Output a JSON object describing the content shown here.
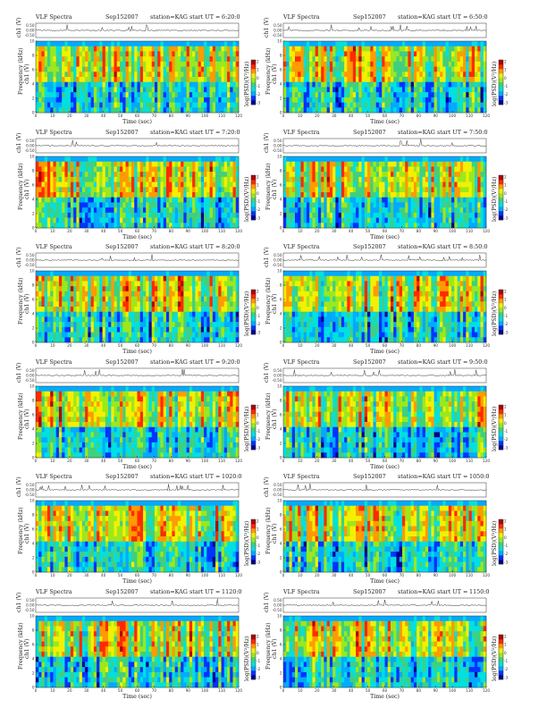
{
  "common": {
    "title_left": "VLF Spectra",
    "date": "Sep152007",
    "station": "station=KAG",
    "start_label": "start  UT =",
    "ylabel_ch": "ch1 (V)",
    "ylabel_freq": "Frequency  (kHz)",
    "xlabel": "Time  (sec)",
    "colorbar_label": "log(PSD)(V²/Hz)",
    "colormap": [
      "#00008b",
      "#0033ff",
      "#00aaff",
      "#00e0e0",
      "#3fd07f",
      "#9be81c",
      "#f3f000",
      "#ff9a00",
      "#ff2a00",
      "#b00000"
    ]
  },
  "chart_data": [
    {
      "type": "heatmap",
      "start_ut": "6:20:0",
      "ch1_ticks": [
        "0.50",
        "0.00",
        "-0.50"
      ],
      "ch1_ylim": [
        -0.5,
        0.5
      ],
      "freq_ylim": [
        0,
        10
      ],
      "freq_ticks": [
        "0",
        "2",
        "4",
        "6",
        "8",
        "10"
      ],
      "xlim": [
        0,
        120
      ],
      "x_ticks": [
        "0",
        "10",
        "20",
        "30",
        "40",
        "50",
        "60",
        "70",
        "80",
        "90",
        "100",
        "110",
        "120"
      ],
      "colorbar_ticks": [
        "2",
        "1",
        "0",
        "-1",
        "-2",
        "-3"
      ]
    },
    {
      "type": "heatmap",
      "start_ut": "6:50:0",
      "ch1_ticks": [
        "0.50",
        "0.00",
        "-0.50"
      ],
      "ch1_ylim": [
        -0.5,
        0.5
      ],
      "freq_ylim": [
        0,
        10
      ],
      "freq_ticks": [
        "0",
        "2",
        "4",
        "6",
        "8",
        "10"
      ],
      "xlim": [
        0,
        120
      ],
      "x_ticks": [
        "0",
        "10",
        "20",
        "30",
        "40",
        "50",
        "60",
        "70",
        "80",
        "90",
        "100",
        "110",
        "120"
      ],
      "colorbar_ticks": [
        "2",
        "1",
        "0",
        "-1",
        "-2",
        "-3"
      ]
    },
    {
      "type": "heatmap",
      "start_ut": "7:20:0",
      "ch1_ticks": [
        "0.50",
        "0.00",
        "-0.50"
      ],
      "ch1_ylim": [
        -0.5,
        0.5
      ],
      "freq_ylim": [
        0,
        10
      ],
      "freq_ticks": [
        "0",
        "2",
        "4",
        "6",
        "8",
        "10"
      ],
      "xlim": [
        0,
        120
      ],
      "x_ticks": [
        "0",
        "10",
        "20",
        "30",
        "40",
        "50",
        "60",
        "70",
        "80",
        "90",
        "100",
        "110",
        "120"
      ],
      "colorbar_ticks": [
        "2",
        "1",
        "0",
        "-1",
        "-2",
        "-3"
      ]
    },
    {
      "type": "heatmap",
      "start_ut": "7:50:0",
      "ch1_ticks": [
        "0.50",
        "0.00",
        "-0.50"
      ],
      "ch1_ylim": [
        -0.5,
        0.5
      ],
      "freq_ylim": [
        0,
        10
      ],
      "freq_ticks": [
        "0",
        "2",
        "4",
        "6",
        "8",
        "10"
      ],
      "xlim": [
        0,
        120
      ],
      "x_ticks": [
        "0",
        "10",
        "20",
        "30",
        "40",
        "50",
        "60",
        "70",
        "80",
        "90",
        "100",
        "110",
        "120"
      ],
      "colorbar_ticks": [
        "2",
        "1",
        "0",
        "-1",
        "-2",
        "-3"
      ]
    },
    {
      "type": "heatmap",
      "start_ut": "8:20:0",
      "ch1_ticks": [
        "0.50",
        "0.00",
        "-0.50"
      ],
      "ch1_ylim": [
        -0.5,
        0.5
      ],
      "freq_ylim": [
        0,
        10
      ],
      "freq_ticks": [
        "0",
        "2",
        "4",
        "6",
        "8",
        "10"
      ],
      "xlim": [
        0,
        120
      ],
      "x_ticks": [
        "0",
        "10",
        "20",
        "30",
        "40",
        "50",
        "60",
        "70",
        "80",
        "90",
        "100",
        "110",
        "120"
      ],
      "colorbar_ticks": [
        "2",
        "1",
        "0",
        "-1",
        "-2",
        "-3"
      ]
    },
    {
      "type": "heatmap",
      "start_ut": "8:50:0",
      "ch1_ticks": [
        "0.50",
        "0.00",
        "-0.50"
      ],
      "ch1_ylim": [
        -0.5,
        0.5
      ],
      "freq_ylim": [
        0,
        10
      ],
      "freq_ticks": [
        "0",
        "2",
        "4",
        "6",
        "8",
        "10"
      ],
      "xlim": [
        0,
        120
      ],
      "x_ticks": [
        "0",
        "10",
        "20",
        "30",
        "40",
        "50",
        "60",
        "70",
        "80",
        "90",
        "100",
        "110",
        "120"
      ],
      "colorbar_ticks": [
        "2",
        "1",
        "0",
        "-1",
        "-2",
        "-3"
      ]
    },
    {
      "type": "heatmap",
      "start_ut": "9:20:0",
      "ch1_ticks": [
        "0.50",
        "0.00",
        "-0.50"
      ],
      "ch1_ylim": [
        -0.5,
        0.5
      ],
      "freq_ylim": [
        0,
        10
      ],
      "freq_ticks": [
        "0",
        "2",
        "4",
        "6",
        "8",
        "10"
      ],
      "xlim": [
        0,
        120
      ],
      "x_ticks": [
        "0",
        "10",
        "20",
        "30",
        "40",
        "50",
        "60",
        "70",
        "80",
        "90",
        "100",
        "110",
        "120"
      ],
      "colorbar_ticks": [
        "2",
        "1",
        "0",
        "-1",
        "-2",
        "-3"
      ]
    },
    {
      "type": "heatmap",
      "start_ut": "9:50:0",
      "ch1_ticks": [
        "0.50",
        "0.00",
        "-0.50"
      ],
      "ch1_ylim": [
        -0.5,
        0.5
      ],
      "freq_ylim": [
        0,
        10
      ],
      "freq_ticks": [
        "0",
        "2",
        "4",
        "6",
        "8",
        "10"
      ],
      "xlim": [
        0,
        120
      ],
      "x_ticks": [
        "0",
        "10",
        "20",
        "30",
        "40",
        "50",
        "60",
        "70",
        "80",
        "90",
        "100",
        "110",
        "120"
      ],
      "colorbar_ticks": [
        "2",
        "1",
        "0",
        "-1",
        "-2",
        "-3"
      ]
    },
    {
      "type": "heatmap",
      "start_ut": "1020:0",
      "ch1_ticks": [
        "0.50",
        "0.00",
        "-0.50"
      ],
      "ch1_ylim": [
        -0.5,
        0.5
      ],
      "freq_ylim": [
        0,
        10
      ],
      "freq_ticks": [
        "0",
        "2",
        "4",
        "6",
        "8",
        "10"
      ],
      "xlim": [
        0,
        120
      ],
      "x_ticks": [
        "0",
        "10",
        "20",
        "30",
        "40",
        "50",
        "60",
        "70",
        "80",
        "90",
        "100",
        "110",
        "120"
      ],
      "colorbar_ticks": [
        "2",
        "1",
        "0",
        "-1",
        "-2",
        "-3"
      ]
    },
    {
      "type": "heatmap",
      "start_ut": "1050:0",
      "ch1_ticks": [
        "0.50",
        "0.00",
        "-0.50"
      ],
      "ch1_ylim": [
        -0.5,
        0.5
      ],
      "freq_ylim": [
        0,
        10
      ],
      "freq_ticks": [
        "0",
        "2",
        "4",
        "6",
        "8",
        "10"
      ],
      "xlim": [
        0,
        120
      ],
      "x_ticks": [
        "0",
        "10",
        "20",
        "30",
        "40",
        "50",
        "60",
        "70",
        "80",
        "90",
        "100",
        "110",
        "120"
      ],
      "colorbar_ticks": [
        "2",
        "1",
        "0",
        "-1",
        "-2",
        "-3"
      ]
    },
    {
      "type": "heatmap",
      "start_ut": "1120:0",
      "ch1_ticks": [
        "0.50",
        "0.00",
        "-0.50"
      ],
      "ch1_ylim": [
        -0.5,
        0.5
      ],
      "freq_ylim": [
        0,
        10
      ],
      "freq_ticks": [
        "0",
        "2",
        "4",
        "6",
        "8",
        "10"
      ],
      "xlim": [
        0,
        120
      ],
      "x_ticks": [
        "0",
        "10",
        "20",
        "30",
        "40",
        "50",
        "60",
        "70",
        "80",
        "90",
        "100",
        "110",
        "120"
      ],
      "colorbar_ticks": [
        "2",
        "1",
        "0",
        "-1",
        "-2",
        "-3"
      ]
    },
    {
      "type": "heatmap",
      "start_ut": "1150:0",
      "ch1_ticks": [
        "0.50",
        "0.00",
        "-0.50"
      ],
      "ch1_ylim": [
        -0.5,
        0.5
      ],
      "freq_ylim": [
        0,
        10
      ],
      "freq_ticks": [
        "0",
        "2",
        "4",
        "6",
        "8",
        "10"
      ],
      "xlim": [
        0,
        120
      ],
      "x_ticks": [
        "0",
        "10",
        "20",
        "30",
        "40",
        "50",
        "60",
        "70",
        "80",
        "90",
        "100",
        "110",
        "120"
      ],
      "colorbar_ticks": [
        "2",
        "1",
        "0",
        "-1",
        "-2",
        "-3"
      ]
    }
  ]
}
